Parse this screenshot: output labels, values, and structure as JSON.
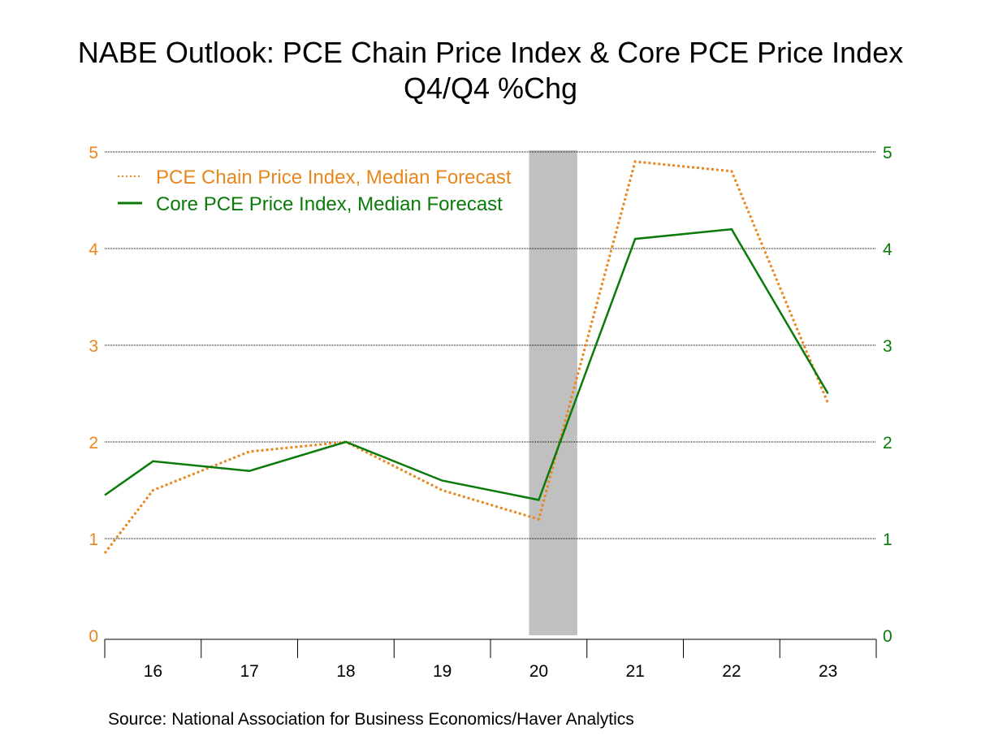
{
  "title_line1": "NABE Outlook: PCE Chain Price Index & Core PCE Price Index",
  "title_line2": "Q4/Q4 %Chg",
  "source": "Source:  National Association for Business Economics/Haver Analytics",
  "colors": {
    "pce": "#E8871E",
    "core": "#0A7A0A",
    "left_axis": "#E8871E",
    "right_axis": "#0A7A0A",
    "recession": "#C0C0C0",
    "grid": "#000000"
  },
  "chart_data": {
    "type": "line",
    "categories": [
      "16",
      "17",
      "18",
      "19",
      "20",
      "21",
      "22",
      "23"
    ],
    "x_range": [
      2015.5,
      2023.5
    ],
    "ylim_left": [
      0,
      5
    ],
    "ylim_right": [
      0,
      5
    ],
    "yticks_left": [
      0,
      1,
      2,
      3,
      4,
      5
    ],
    "yticks_right": [
      0,
      1,
      2,
      3,
      4,
      5
    ],
    "grid": "horizontal dotted",
    "legend_position": "top-left",
    "recession_shade": [
      2019.9,
      2020.4
    ],
    "series": [
      {
        "name": "PCE Chain Price Index, Median Forecast",
        "style": "dotted",
        "color": "#E8871E",
        "x": [
          2015.5,
          2016,
          2017,
          2018,
          2019,
          2020,
          2021,
          2022,
          2023
        ],
        "values": [
          0.85,
          1.5,
          1.9,
          2.0,
          1.5,
          1.2,
          4.9,
          4.8,
          2.4
        ]
      },
      {
        "name": "Core PCE Price Index, Median Forecast",
        "style": "solid",
        "color": "#0A7A0A",
        "x": [
          2015.5,
          2016,
          2017,
          2018,
          2019,
          2020,
          2021,
          2022,
          2023
        ],
        "values": [
          1.45,
          1.8,
          1.7,
          2.0,
          1.6,
          1.4,
          4.1,
          4.2,
          2.5
        ]
      }
    ]
  }
}
